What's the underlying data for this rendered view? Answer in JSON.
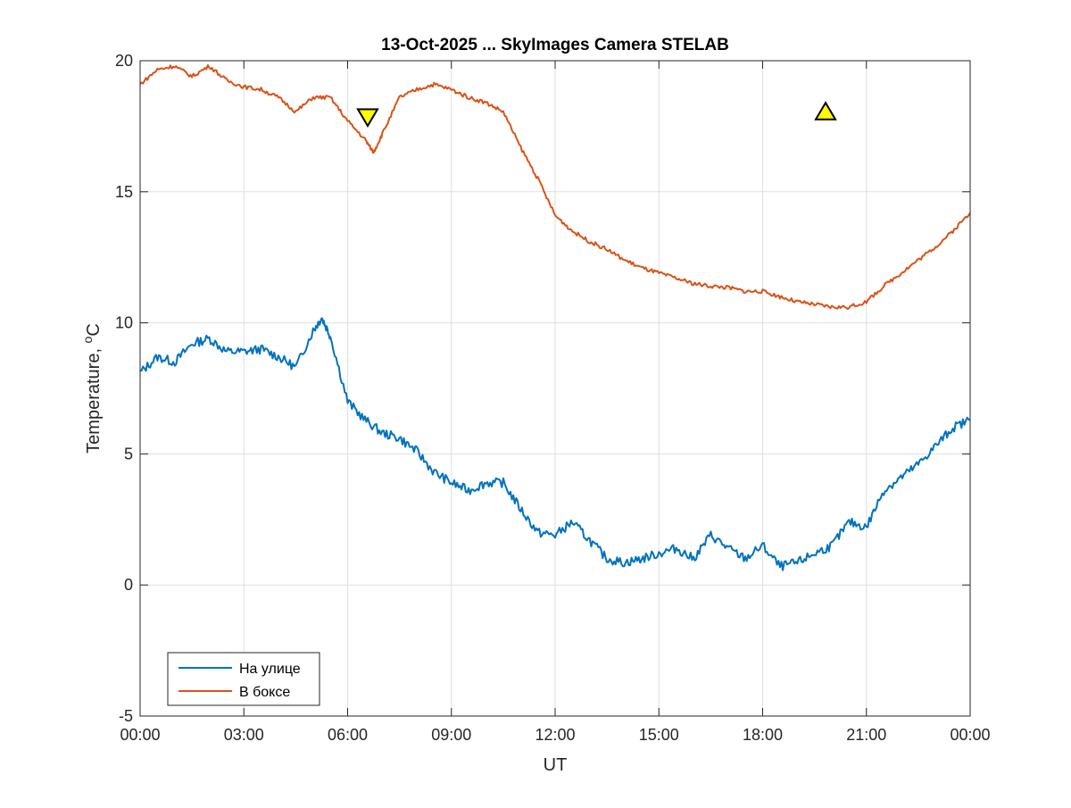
{
  "chart_data": {
    "type": "line",
    "title": "13-Oct-2025 ... SkyImages Camera STELAB",
    "xlabel": "UT",
    "ylabel": "Temperature, ",
    "ylabel_unit_sup": "o",
    "ylabel_unit": "C",
    "xlim_hours": [
      0,
      24
    ],
    "ylim": [
      -5,
      20
    ],
    "grid": true,
    "xticks": [
      0,
      3,
      6,
      9,
      12,
      15,
      18,
      21,
      24
    ],
    "xtick_labels": [
      "00:00",
      "03:00",
      "06:00",
      "09:00",
      "12:00",
      "15:00",
      "18:00",
      "21:00",
      "00:00"
    ],
    "yticks": [
      -5,
      0,
      5,
      10,
      15,
      20
    ],
    "ytick_labels": [
      "-5",
      "0",
      "5",
      "10",
      "15",
      "20"
    ],
    "legend_position": "bottom-left",
    "series": [
      {
        "name": "На улице",
        "color": "#0072BD",
        "x": [
          0,
          0.5,
          1,
          1.5,
          2,
          2.5,
          3,
          3.5,
          4,
          4.5,
          5,
          5.25,
          5.5,
          6,
          6.5,
          7,
          7.5,
          8,
          8.5,
          9,
          9.5,
          10,
          10.5,
          11,
          11.5,
          12,
          12.5,
          13,
          13.5,
          14,
          14.5,
          15,
          15.5,
          16,
          16.5,
          17,
          17.5,
          18,
          18.5,
          19,
          19.5,
          20,
          20.5,
          21,
          21.5,
          22,
          22.5,
          23,
          23.5,
          24
        ],
        "y": [
          8.1,
          8.7,
          8.5,
          9.2,
          9.4,
          8.9,
          8.9,
          9.0,
          8.7,
          8.3,
          9.7,
          10.2,
          9.5,
          7.0,
          6.3,
          5.8,
          5.6,
          5.1,
          4.3,
          3.9,
          3.6,
          3.9,
          3.9,
          2.9,
          2.0,
          1.9,
          2.4,
          1.7,
          1.0,
          0.85,
          1.0,
          1.2,
          1.4,
          1.0,
          1.9,
          1.4,
          1.0,
          1.5,
          0.7,
          0.85,
          1.2,
          1.5,
          2.4,
          2.2,
          3.6,
          4.1,
          4.6,
          5.3,
          6.0,
          6.3
        ]
      },
      {
        "name": "В боксе",
        "color": "#D95319",
        "x": [
          0,
          0.5,
          1,
          1.5,
          2,
          2.5,
          3,
          3.5,
          4,
          4.5,
          5,
          5.5,
          6,
          6.5,
          6.75,
          7,
          7.5,
          8,
          8.5,
          9,
          9.5,
          10,
          10.5,
          11,
          11.5,
          12,
          12.5,
          13,
          13.5,
          14,
          14.5,
          15,
          15.5,
          16,
          16.5,
          17,
          17.5,
          18,
          18.5,
          19,
          19.5,
          20,
          20.5,
          21,
          21.5,
          22,
          22.5,
          23,
          23.5,
          24
        ],
        "y": [
          19.1,
          19.66,
          19.8,
          19.4,
          19.8,
          19.25,
          19.0,
          18.9,
          18.6,
          18.05,
          18.6,
          18.6,
          17.7,
          17.0,
          16.5,
          17.2,
          18.6,
          18.9,
          19.1,
          18.9,
          18.6,
          18.4,
          18.05,
          16.7,
          15.5,
          14.1,
          13.5,
          13.1,
          12.8,
          12.4,
          12.1,
          11.9,
          11.7,
          11.5,
          11.4,
          11.35,
          11.2,
          11.2,
          11.0,
          10.8,
          10.7,
          10.6,
          10.6,
          10.8,
          11.4,
          11.9,
          12.4,
          12.9,
          13.5,
          14.2
        ]
      }
    ],
    "markers": [
      {
        "shape": "triangle-down",
        "x": 6.58,
        "y": 17.85,
        "color": "#FFFF00"
      },
      {
        "shape": "triangle-up",
        "x": 19.82,
        "y": 18.06,
        "color": "#FFFF00"
      }
    ]
  }
}
